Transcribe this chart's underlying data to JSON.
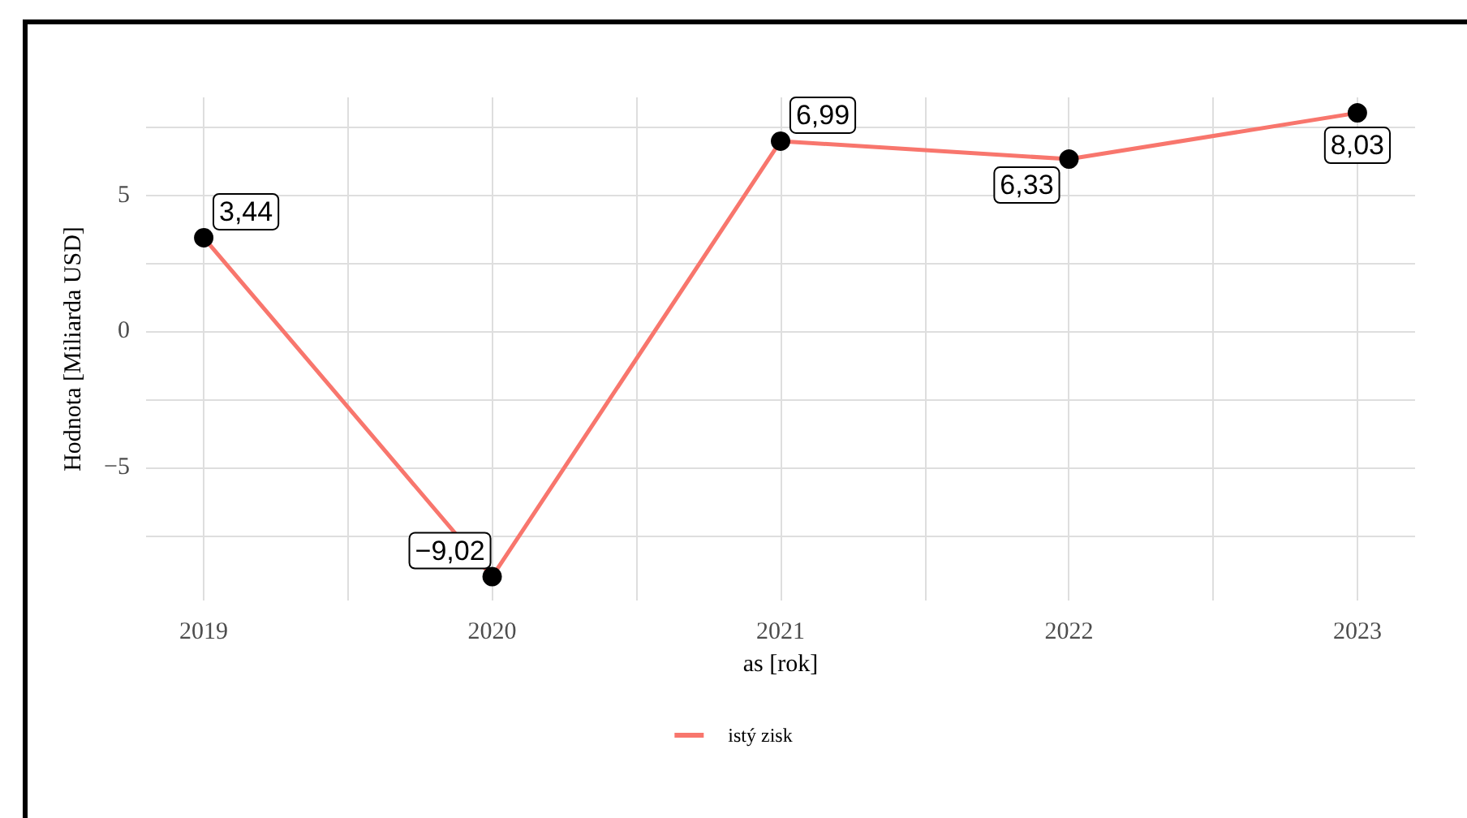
{
  "chart_data": {
    "type": "line",
    "xlabel": "as [rok]",
    "ylabel": "Hodnota [Miliarda USD]",
    "x": [
      2019,
      2020,
      2021,
      2022,
      2023
    ],
    "series": [
      {
        "name": "istý zisk",
        "color": "#f8766d",
        "values": [
          3.44,
          -9.02,
          6.99,
          6.33,
          8.03
        ],
        "value_labels": [
          "3,44",
          "−9,02",
          "6,99",
          "6,33",
          "8,03"
        ]
      }
    ],
    "xlim": [
      2018.8,
      2023.2
    ],
    "xticks": [
      2019,
      {
        "value": 2019.5,
        "label": null
      },
      2020,
      {
        "value": 2020.5,
        "label": null
      },
      2021,
      {
        "value": 2021.5,
        "label": null
      },
      2022,
      {
        "value": 2022.5,
        "label": null
      },
      2023
    ],
    "ylim": [
      -9.9,
      8.6
    ],
    "yticks": [
      {
        "value": -7.5,
        "label": null
      },
      {
        "value": -5,
        "label": "−5"
      },
      {
        "value": -2.5,
        "label": null
      },
      0,
      {
        "value": 2.5,
        "label": null
      },
      5,
      {
        "value": 7.5,
        "label": null
      }
    ],
    "grid": true,
    "legend": "bottom",
    "marker": "circle",
    "line_style": "solid"
  }
}
